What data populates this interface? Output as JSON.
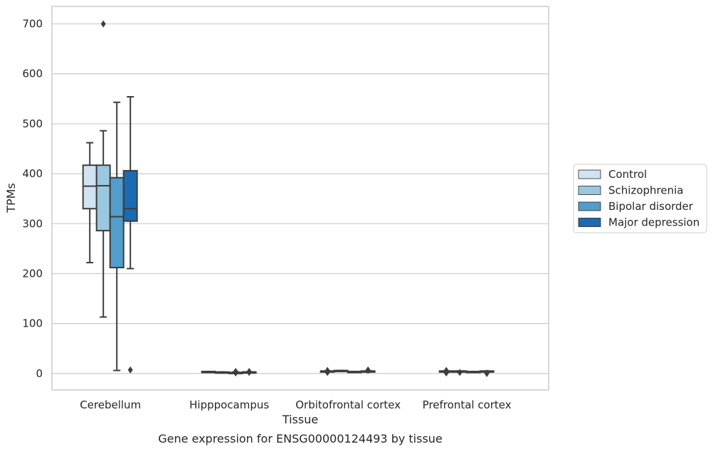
{
  "chart_data": {
    "type": "boxplot",
    "caption": "Gene expression for ENSG00000124493 by tissue",
    "xlabel": "Tissue",
    "ylabel": "TPMs",
    "ylim": [
      -33,
      735
    ],
    "yticks": [
      0,
      100,
      200,
      300,
      400,
      500,
      600,
      700
    ],
    "grid": "horizontal",
    "legend_position": "right",
    "categories": [
      "Cerebellum",
      "Hipppocampus",
      "Orbitofrontal cortex",
      "Prefrontal cortex"
    ],
    "series": [
      {
        "name": "Control",
        "color": "#d2e3f3",
        "boxes": [
          {
            "whisker_low": 222,
            "q1": 330,
            "median": 375,
            "q3": 417,
            "whisker_high": 462,
            "outliers": []
          },
          {
            "whisker_low": 2,
            "q1": 2,
            "median": 3,
            "q3": 4,
            "whisker_high": 4,
            "outliers": []
          },
          {
            "whisker_low": 3,
            "q1": 4,
            "median": 4,
            "q3": 5,
            "whisker_high": 5,
            "outliers": [
              2,
              6
            ]
          },
          {
            "whisker_low": 3,
            "q1": 3,
            "median": 4,
            "q3": 5,
            "whisker_high": 5,
            "outliers": [
              1,
              6
            ]
          }
        ]
      },
      {
        "name": "Schizophrenia",
        "color": "#9ac8e0",
        "boxes": [
          {
            "whisker_low": 113,
            "q1": 286,
            "median": 376,
            "q3": 417,
            "whisker_high": 486,
            "outliers": [
              700
            ]
          },
          {
            "whisker_low": 1,
            "q1": 2,
            "median": 2,
            "q3": 3,
            "whisker_high": 3,
            "outliers": []
          },
          {
            "whisker_low": 4,
            "q1": 5,
            "median": 5,
            "q3": 6,
            "whisker_high": 6,
            "outliers": []
          },
          {
            "whisker_low": 3,
            "q1": 4,
            "median": 4,
            "q3": 5,
            "whisker_high": 5,
            "outliers": [
              2
            ]
          }
        ]
      },
      {
        "name": "Bipolar disorder",
        "color": "#529dcc",
        "boxes": [
          {
            "whisker_low": 6,
            "q1": 212,
            "median": 314,
            "q3": 392,
            "whisker_high": 543,
            "outliers": []
          },
          {
            "whisker_low": 1,
            "q1": 2,
            "median": 2,
            "q3": 2,
            "whisker_high": 3,
            "outliers": [
              1,
              4
            ]
          },
          {
            "whisker_low": 2,
            "q1": 3,
            "median": 3,
            "q3": 4,
            "whisker_high": 4,
            "outliers": []
          },
          {
            "whisker_low": 2,
            "q1": 3,
            "median": 3,
            "q3": 4,
            "whisker_high": 4,
            "outliers": []
          }
        ]
      },
      {
        "name": "Major depression",
        "color": "#1c6aaf",
        "boxes": [
          {
            "whisker_low": 210,
            "q1": 305,
            "median": 330,
            "q3": 406,
            "whisker_high": 554,
            "outliers": [
              7
            ]
          },
          {
            "whisker_low": 2,
            "q1": 2,
            "median": 3,
            "q3": 3,
            "whisker_high": 3,
            "outliers": [
              2,
              4
            ]
          },
          {
            "whisker_low": 3,
            "q1": 3,
            "median": 4,
            "q3": 5,
            "whisker_high": 5,
            "outliers": [
              6,
              7
            ]
          },
          {
            "whisker_low": 3,
            "q1": 4,
            "median": 4,
            "q3": 5,
            "whisker_high": 5,
            "outliers": [
              0,
              1
            ]
          }
        ]
      }
    ]
  },
  "style": {
    "line_color": "#3d3d3d",
    "grid_color": "#cccccc",
    "frame_color": "#cccccc"
  }
}
